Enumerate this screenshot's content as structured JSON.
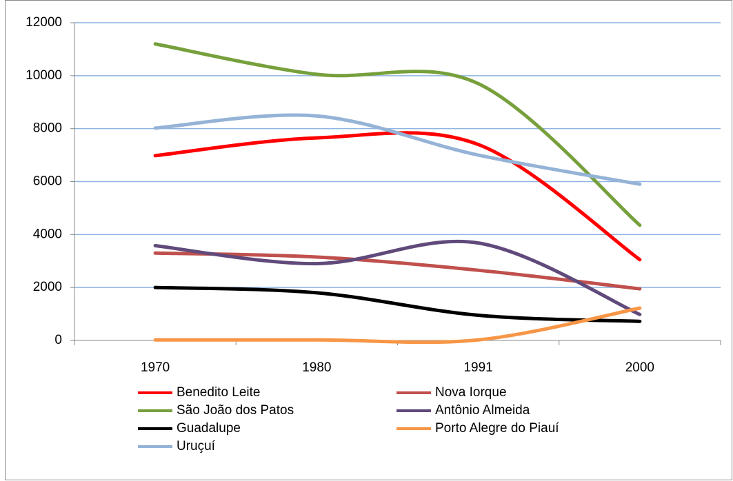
{
  "chart_data": {
    "type": "line",
    "categories": [
      "1970",
      "1980",
      "1991",
      "2000"
    ],
    "series": [
      {
        "name": "Benedito Leite",
        "color": "#ff0000",
        "values": [
          6980,
          7650,
          7400,
          3050
        ]
      },
      {
        "name": "Nova Iorque",
        "color": "#c0504d",
        "values": [
          3300,
          3150,
          2650,
          1950
        ]
      },
      {
        "name": "São João dos Patos",
        "color": "#77a03c",
        "values": [
          11200,
          10050,
          9700,
          4350
        ]
      },
      {
        "name": "Antônio Almeida",
        "color": "#604a7b",
        "values": [
          3580,
          2900,
          3680,
          980
        ]
      },
      {
        "name": "Guadalupe",
        "color": "#000000",
        "values": [
          2000,
          1800,
          950,
          720
        ]
      },
      {
        "name": "Porto Alegre do Piauí",
        "color": "#f79646",
        "values": [
          20,
          20,
          20,
          1220
        ]
      },
      {
        "name": "Uruçuí",
        "color": "#95b3d7",
        "values": [
          8020,
          8480,
          7000,
          5900
        ]
      }
    ],
    "ylim": [
      0,
      12000
    ],
    "yticks": [
      0,
      2000,
      4000,
      6000,
      8000,
      10000,
      12000
    ],
    "grid": true,
    "legend": "bottom"
  }
}
